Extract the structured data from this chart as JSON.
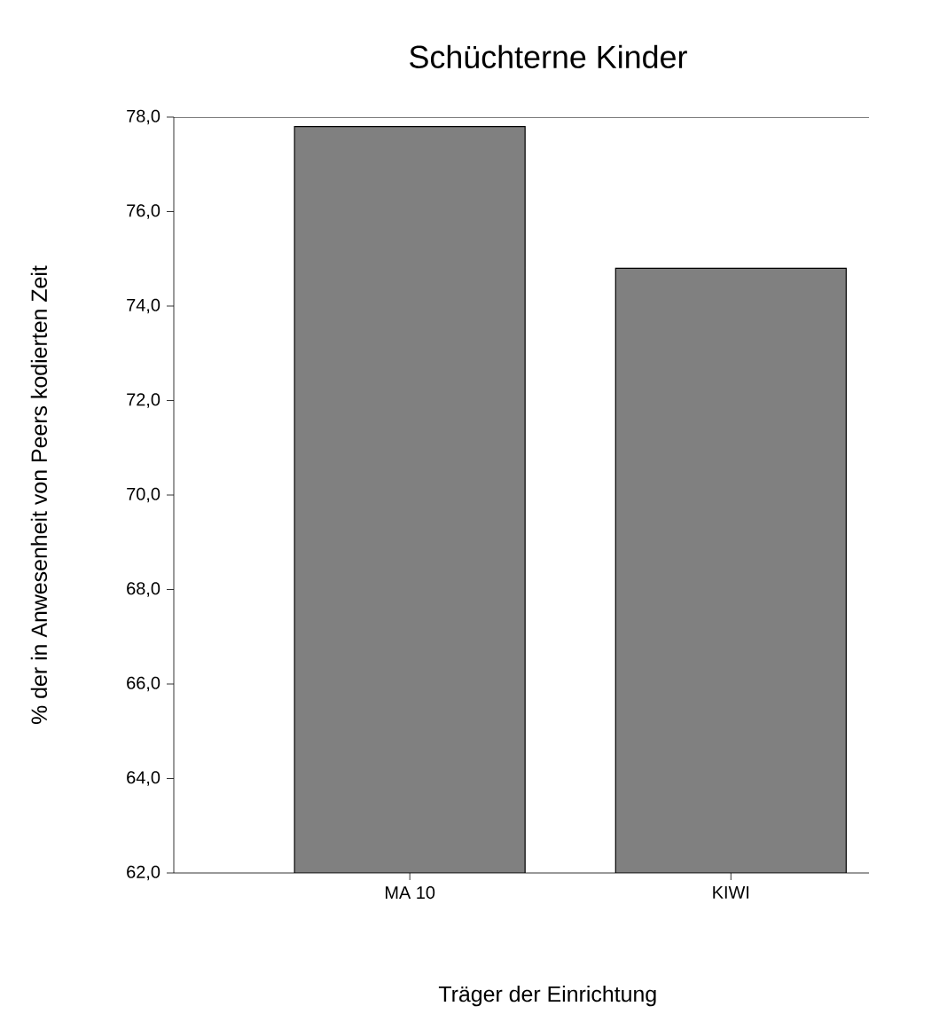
{
  "chart_data": {
    "type": "bar",
    "title": "Schüchterne Kinder",
    "xlabel": "Träger der Einrichtung",
    "ylabel": "% der in Anwesenheit von Peers kodierten Zeit",
    "categories": [
      "MA 10",
      "KIWI"
    ],
    "values": [
      77.8,
      74.8
    ],
    "color": "#808080",
    "ylim": [
      62,
      78
    ],
    "yticks": [
      {
        "value": 62,
        "label": "62,0"
      },
      {
        "value": 64,
        "label": "64,0"
      },
      {
        "value": 66,
        "label": "66,0"
      },
      {
        "value": 68,
        "label": "68,0"
      },
      {
        "value": 70,
        "label": "70,0"
      },
      {
        "value": 72,
        "label": "72,0"
      },
      {
        "value": 74,
        "label": "74,0"
      },
      {
        "value": 76,
        "label": "76,0"
      },
      {
        "value": 78,
        "label": "78,0"
      }
    ],
    "grid": false
  }
}
